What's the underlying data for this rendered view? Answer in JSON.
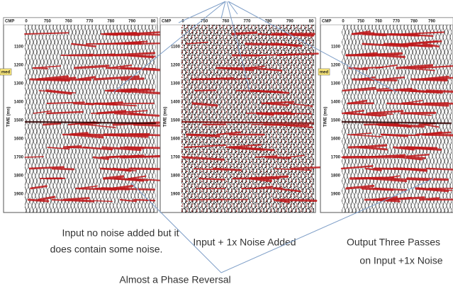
{
  "panels": [
    {
      "header": "CMP",
      "xticks": [
        "0",
        "750",
        "760",
        "770",
        "780",
        "790",
        "80"
      ],
      "axis_label": "TIME (ms)",
      "yticks": [
        "1100",
        "1200",
        "1300",
        "1400",
        "1500",
        "1600",
        "1700",
        "1800",
        "1900"
      ],
      "marker": "med"
    },
    {
      "header": "CMP",
      "xticks": [
        "0",
        "750",
        "760",
        "770",
        "780",
        "790",
        "80"
      ],
      "axis_label": "TIME (ms)",
      "yticks": [
        "1100",
        "1200",
        "1300",
        "1400",
        "1500",
        "1600",
        "1700",
        "1800",
        "1900"
      ]
    },
    {
      "header": "CMP",
      "xticks": [
        "0",
        "750",
        "760",
        "770",
        "780",
        "790"
      ],
      "axis_label": "TIME (ms)",
      "yticks": [
        "1100",
        "1200",
        "1300",
        "1400",
        "1500",
        "1600",
        "1700",
        "1800",
        "1900"
      ],
      "marker": "med"
    }
  ],
  "captions": [
    [
      "Input no noise added but it",
      "does contain some noise."
    ],
    [
      "Input + 1x Noise Added"
    ],
    [
      "Output  Three Passes",
      "on Input +1x Noise"
    ]
  ],
  "annotation": "Almost  a Phase Reversal"
}
